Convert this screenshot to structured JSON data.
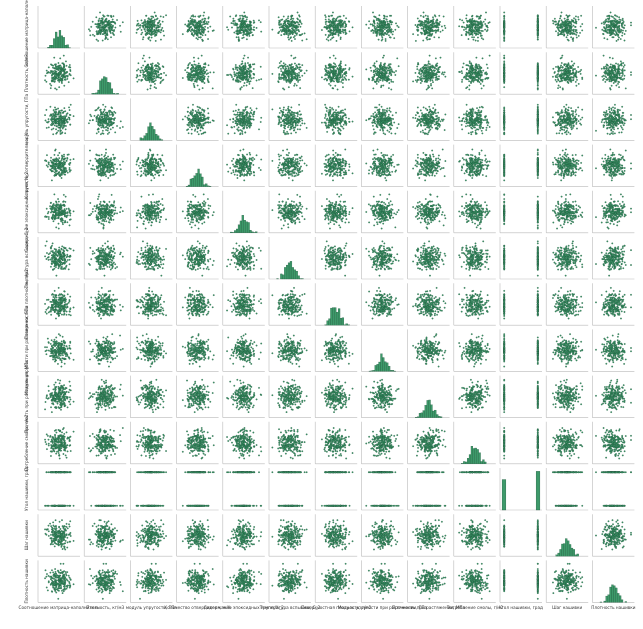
{
  "figure": {
    "marker_color": "#3d9a6a",
    "marker_edge_color": "#184d34",
    "hist_color": "#3d9a6a",
    "frame_color": "#b9b9b9"
  },
  "chart_data": {
    "type": "scatter",
    "title": "",
    "kind": "pairplot",
    "diagonal": "histogram",
    "grid": false,
    "legend": "none",
    "points_per_panel": 1000,
    "variables": [
      {
        "label": "Соотношение матрица-наполнитель",
        "short_label": "Соотношение матрица-наполнитель",
        "discrete": false
      },
      {
        "label": "Плотность, кг/м3",
        "short_label": "Плотность, кг/м3",
        "discrete": false
      },
      {
        "label": "модуль упругости, ГПа",
        "short_label": "модуль упругости, ГПа",
        "discrete": false
      },
      {
        "label": "Количество отвердителя, м.%",
        "short_label": "Количество отвердителя, м.%",
        "discrete": false
      },
      {
        "label": "Содержание эпоксидных групп,%_2",
        "short_label": "Содержание эпоксидных групп,%_2",
        "discrete": false
      },
      {
        "label": "Температура вспышки, С_2",
        "short_label": "Температура вспышки, С_2",
        "discrete": false
      },
      {
        "label": "Поверхностная плотность, г/м2",
        "short_label": "Поверхностная плотность, г/м2",
        "discrete": false
      },
      {
        "label": "Модуль упругости при растяжении, ГПа",
        "short_label": "Модуль упругости при растяжении, ГПа",
        "discrete": false
      },
      {
        "label": "Прочность при растяжении, МПа",
        "short_label": "Прочность при растяжении, МПа",
        "discrete": false
      },
      {
        "label": "Потребление смолы, г/м2",
        "short_label": "Потребление смолы, г/м2",
        "discrete": false
      },
      {
        "label": "Угол нашивки, град",
        "short_label": "Угол нашивки, град",
        "discrete": true,
        "levels": [
          0,
          1
        ]
      },
      {
        "label": "Шаг нашивки",
        "short_label": "Шаг нашивки",
        "discrete": false
      },
      {
        "label": "Плотность нашивки",
        "short_label": "Плотность нашивки",
        "discrete": false
      }
    ]
  }
}
